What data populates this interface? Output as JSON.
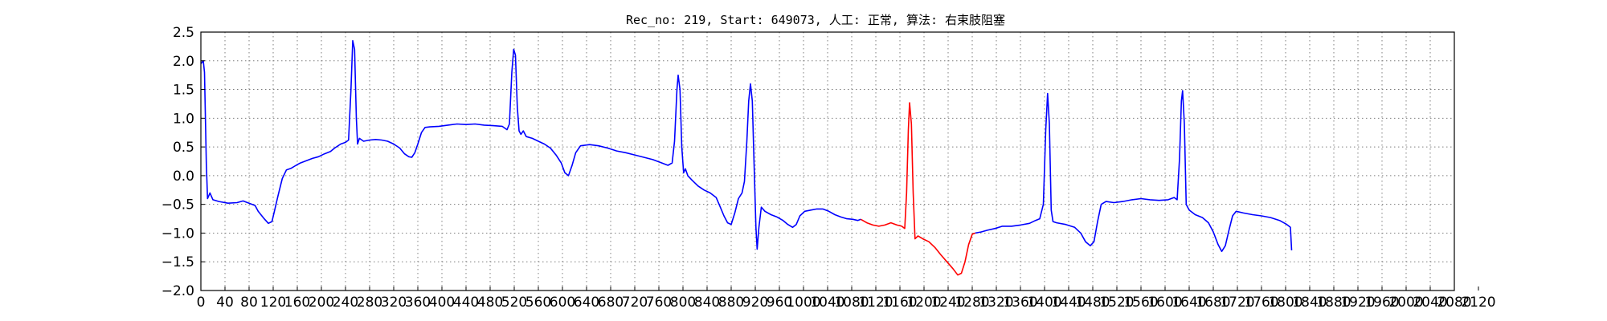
{
  "chart_data": {
    "type": "line",
    "title": "Rec_no: 219, Start: 649073, 人工: 正常, 算法: 右束肢阻塞",
    "xlabel": "",
    "ylabel": "",
    "xlim": [
      0,
      2080
    ],
    "ylim": [
      -2.0,
      2.5
    ],
    "grid": true,
    "x_ticks": [
      0,
      40,
      80,
      120,
      160,
      200,
      240,
      280,
      320,
      360,
      400,
      440,
      480,
      520,
      560,
      600,
      640,
      680,
      720,
      760,
      800,
      840,
      880,
      920,
      960,
      1000,
      1040,
      1080,
      1120,
      1160,
      1200,
      1240,
      1280,
      1320,
      1360,
      1400,
      1440,
      1480,
      1520,
      1560,
      1600,
      1640,
      1680,
      1720,
      1760,
      1800,
      1840,
      1880,
      1920,
      1960,
      2000,
      2040,
      2080,
      2120
    ],
    "y_ticks": [
      -2.0,
      -1.5,
      -1.0,
      -0.5,
      0.0,
      0.5,
      1.0,
      1.5,
      2.0,
      2.5
    ],
    "x_tick_labels": [
      "0",
      "40",
      "80",
      "120",
      "160",
      "200",
      "240",
      "280",
      "320",
      "360",
      "400",
      "440",
      "480",
      "520",
      "560",
      "600",
      "640",
      "680",
      "720",
      "760",
      "800",
      "840",
      "880",
      "920",
      "960",
      "1000",
      "1040",
      "1080",
      "1120",
      "1160",
      "1200",
      "1240",
      "1280",
      "1320",
      "1360",
      "1400",
      "1440",
      "1480",
      "1520",
      "1560",
      "1600",
      "1640",
      "1680",
      "1720",
      "1760",
      "1800",
      "1840",
      "1880",
      "1920",
      "1960",
      "2000",
      "2040",
      "2080",
      "2120"
    ],
    "y_tick_labels": [
      "−2.0",
      "−1.5",
      "−1.0",
      "−0.5",
      "0.0",
      "0.5",
      "1.0",
      "1.5",
      "2.0",
      "2.5"
    ],
    "series": [
      {
        "color": "#0000ff",
        "points": [
          [
            0,
            1.95
          ],
          [
            4,
            2.0
          ],
          [
            6,
            1.8
          ],
          [
            9,
            0.2
          ],
          [
            11,
            -0.4
          ],
          [
            15,
            -0.3
          ],
          [
            20,
            -0.42
          ],
          [
            30,
            -0.45
          ],
          [
            45,
            -0.48
          ],
          [
            60,
            -0.47
          ],
          [
            70,
            -0.44
          ],
          [
            80,
            -0.48
          ],
          [
            90,
            -0.52
          ],
          [
            95,
            -0.62
          ],
          [
            105,
            -0.75
          ],
          [
            112,
            -0.83
          ],
          [
            118,
            -0.8
          ],
          [
            122,
            -0.62
          ],
          [
            128,
            -0.35
          ],
          [
            135,
            -0.05
          ],
          [
            142,
            0.1
          ],
          [
            150,
            0.13
          ],
          [
            158,
            0.18
          ],
          [
            165,
            0.22
          ],
          [
            175,
            0.26
          ],
          [
            185,
            0.3
          ],
          [
            195,
            0.33
          ],
          [
            205,
            0.38
          ],
          [
            215,
            0.42
          ],
          [
            222,
            0.48
          ],
          [
            232,
            0.55
          ],
          [
            240,
            0.58
          ],
          [
            245,
            0.62
          ],
          [
            249,
            1.5
          ],
          [
            252,
            2.35
          ],
          [
            255,
            2.2
          ],
          [
            258,
            1.0
          ],
          [
            260,
            0.55
          ],
          [
            263,
            0.65
          ],
          [
            270,
            0.6
          ],
          [
            280,
            0.62
          ],
          [
            290,
            0.63
          ],
          [
            300,
            0.62
          ],
          [
            310,
            0.6
          ],
          [
            320,
            0.55
          ],
          [
            330,
            0.48
          ],
          [
            338,
            0.38
          ],
          [
            345,
            0.33
          ],
          [
            350,
            0.32
          ],
          [
            355,
            0.4
          ],
          [
            360,
            0.55
          ],
          [
            366,
            0.75
          ],
          [
            372,
            0.84
          ],
          [
            380,
            0.85
          ],
          [
            395,
            0.86
          ],
          [
            410,
            0.88
          ],
          [
            425,
            0.9
          ],
          [
            440,
            0.89
          ],
          [
            455,
            0.9
          ],
          [
            470,
            0.88
          ],
          [
            485,
            0.87
          ],
          [
            500,
            0.86
          ],
          [
            508,
            0.8
          ],
          [
            512,
            0.9
          ],
          [
            516,
            1.8
          ],
          [
            519,
            2.2
          ],
          [
            522,
            2.1
          ],
          [
            525,
            1.2
          ],
          [
            528,
            0.78
          ],
          [
            531,
            0.72
          ],
          [
            535,
            0.78
          ],
          [
            540,
            0.68
          ],
          [
            550,
            0.65
          ],
          [
            560,
            0.6
          ],
          [
            570,
            0.55
          ],
          [
            580,
            0.48
          ],
          [
            590,
            0.35
          ],
          [
            598,
            0.22
          ],
          [
            604,
            0.05
          ],
          [
            610,
            0.0
          ],
          [
            616,
            0.18
          ],
          [
            622,
            0.4
          ],
          [
            630,
            0.52
          ],
          [
            645,
            0.54
          ],
          [
            660,
            0.52
          ],
          [
            675,
            0.48
          ],
          [
            690,
            0.43
          ],
          [
            705,
            0.4
          ],
          [
            720,
            0.36
          ],
          [
            735,
            0.32
          ],
          [
            750,
            0.28
          ],
          [
            765,
            0.22
          ],
          [
            775,
            0.18
          ],
          [
            782,
            0.22
          ],
          [
            786,
            0.6
          ],
          [
            790,
            1.5
          ],
          [
            792,
            1.75
          ],
          [
            795,
            1.5
          ],
          [
            798,
            0.5
          ],
          [
            801,
            0.05
          ],
          [
            804,
            0.12
          ],
          [
            808,
            0.0
          ],
          [
            815,
            -0.08
          ],
          [
            825,
            -0.18
          ],
          [
            835,
            -0.25
          ],
          [
            845,
            -0.3
          ],
          [
            855,
            -0.38
          ],
          [
            862,
            -0.55
          ],
          [
            868,
            -0.7
          ],
          [
            874,
            -0.82
          ],
          [
            880,
            -0.85
          ],
          [
            886,
            -0.65
          ],
          [
            892,
            -0.4
          ],
          [
            898,
            -0.3
          ],
          [
            902,
            -0.1
          ],
          [
            906,
            0.6
          ],
          [
            909,
            1.3
          ],
          [
            912,
            1.6
          ],
          [
            915,
            1.3
          ],
          [
            918,
            0.2
          ],
          [
            921,
            -0.9
          ],
          [
            923,
            -1.28
          ],
          [
            926,
            -0.9
          ],
          [
            930,
            -0.55
          ],
          [
            936,
            -0.62
          ],
          [
            946,
            -0.68
          ],
          [
            956,
            -0.72
          ],
          [
            966,
            -0.78
          ],
          [
            974,
            -0.85
          ],
          [
            982,
            -0.9
          ],
          [
            988,
            -0.85
          ],
          [
            994,
            -0.7
          ],
          [
            1002,
            -0.62
          ],
          [
            1012,
            -0.6
          ],
          [
            1022,
            -0.58
          ],
          [
            1032,
            -0.58
          ],
          [
            1042,
            -0.62
          ],
          [
            1052,
            -0.68
          ],
          [
            1062,
            -0.72
          ],
          [
            1072,
            -0.75
          ],
          [
            1082,
            -0.76
          ],
          [
            1090,
            -0.78
          ],
          [
            1095,
            -0.76
          ]
        ]
      },
      {
        "color": "#ff0000",
        "points": [
          [
            1095,
            -0.76
          ],
          [
            1105,
            -0.82
          ],
          [
            1115,
            -0.86
          ],
          [
            1125,
            -0.88
          ],
          [
            1135,
            -0.86
          ],
          [
            1145,
            -0.82
          ],
          [
            1155,
            -0.86
          ],
          [
            1163,
            -0.88
          ],
          [
            1168,
            -0.92
          ],
          [
            1171,
            -0.3
          ],
          [
            1174,
            0.8
          ],
          [
            1176,
            1.27
          ],
          [
            1179,
            0.9
          ],
          [
            1182,
            -0.3
          ],
          [
            1185,
            -1.1
          ],
          [
            1190,
            -1.05
          ],
          [
            1198,
            -1.1
          ],
          [
            1208,
            -1.15
          ],
          [
            1218,
            -1.25
          ],
          [
            1228,
            -1.38
          ],
          [
            1238,
            -1.5
          ],
          [
            1248,
            -1.62
          ],
          [
            1256,
            -1.73
          ],
          [
            1262,
            -1.7
          ],
          [
            1268,
            -1.5
          ],
          [
            1274,
            -1.2
          ],
          [
            1280,
            -1.02
          ],
          [
            1285,
            -1.0
          ]
        ]
      },
      {
        "color": "#0000ff",
        "points": [
          [
            1285,
            -1.0
          ],
          [
            1295,
            -0.98
          ],
          [
            1305,
            -0.95
          ],
          [
            1318,
            -0.92
          ],
          [
            1330,
            -0.88
          ],
          [
            1345,
            -0.88
          ],
          [
            1360,
            -0.86
          ],
          [
            1375,
            -0.83
          ],
          [
            1385,
            -0.78
          ],
          [
            1392,
            -0.75
          ],
          [
            1398,
            -0.5
          ],
          [
            1402,
            0.8
          ],
          [
            1405,
            1.43
          ],
          [
            1408,
            0.9
          ],
          [
            1411,
            -0.6
          ],
          [
            1414,
            -0.8
          ],
          [
            1420,
            -0.82
          ],
          [
            1435,
            -0.85
          ],
          [
            1450,
            -0.9
          ],
          [
            1460,
            -1.0
          ],
          [
            1468,
            -1.15
          ],
          [
            1476,
            -1.22
          ],
          [
            1482,
            -1.15
          ],
          [
            1488,
            -0.8
          ],
          [
            1494,
            -0.5
          ],
          [
            1502,
            -0.45
          ],
          [
            1515,
            -0.47
          ],
          [
            1530,
            -0.45
          ],
          [
            1545,
            -0.42
          ],
          [
            1560,
            -0.4
          ],
          [
            1575,
            -0.42
          ],
          [
            1590,
            -0.43
          ],
          [
            1605,
            -0.42
          ],
          [
            1615,
            -0.38
          ],
          [
            1620,
            -0.42
          ],
          [
            1624,
            0.3
          ],
          [
            1627,
            1.3
          ],
          [
            1629,
            1.48
          ],
          [
            1632,
            0.9
          ],
          [
            1635,
            -0.5
          ],
          [
            1640,
            -0.6
          ],
          [
            1650,
            -0.68
          ],
          [
            1662,
            -0.73
          ],
          [
            1672,
            -0.82
          ],
          [
            1680,
            -0.98
          ],
          [
            1688,
            -1.2
          ],
          [
            1694,
            -1.32
          ],
          [
            1700,
            -1.22
          ],
          [
            1706,
            -0.95
          ],
          [
            1712,
            -0.7
          ],
          [
            1718,
            -0.62
          ],
          [
            1730,
            -0.65
          ],
          [
            1745,
            -0.68
          ],
          [
            1760,
            -0.7
          ],
          [
            1775,
            -0.73
          ],
          [
            1790,
            -0.78
          ],
          [
            1802,
            -0.85
          ],
          [
            1808,
            -0.9
          ],
          [
            1810,
            -1.3
          ]
        ]
      }
    ]
  }
}
